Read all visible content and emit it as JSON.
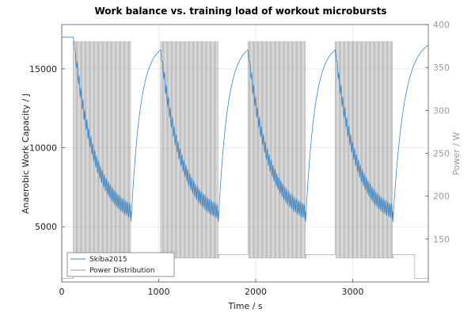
{
  "chart_data": {
    "type": "line",
    "title": "Work balance vs. training load of workout  microbursts",
    "xlabel": "Time / s",
    "ylabel": "Anaerobic Work Capacity / J",
    "y2label": "Power / W",
    "xlim": [
      0,
      3780
    ],
    "ylim": [
      1500,
      17800
    ],
    "y2lim": [
      100,
      400
    ],
    "xticks": [
      0,
      1000,
      2000,
      3000
    ],
    "yticks": [
      5000,
      10000,
      15000
    ],
    "y2ticks": [
      150,
      200,
      250,
      300,
      350,
      400
    ],
    "grid": true,
    "legend_position": "bottom-left",
    "legend": [
      "Skiba2015",
      "Power Distribution"
    ],
    "series": [
      {
        "name": "Skiba2015",
        "axis": "left",
        "color": "#3a86c8",
        "style": "oscillating-decay-recovery",
        "start_value": 17000,
        "recovery_peak": 16200,
        "block_end_minimum": 5300,
        "final_value": 16500
      },
      {
        "name": "Power Distribution",
        "axis": "right",
        "color": "#9a9a9a",
        "style": "square-wave",
        "high_power": 380,
        "low_power": 128,
        "rest_power": 132,
        "baseline_power": 104,
        "bursts_per_block": 30,
        "burst_period_s": 20,
        "blocks": [
          {
            "start": 120,
            "end": 715
          },
          {
            "start": 1020,
            "end": 1615
          },
          {
            "start": 1920,
            "end": 2515
          },
          {
            "start": 2820,
            "end": 3415
          }
        ]
      }
    ]
  }
}
